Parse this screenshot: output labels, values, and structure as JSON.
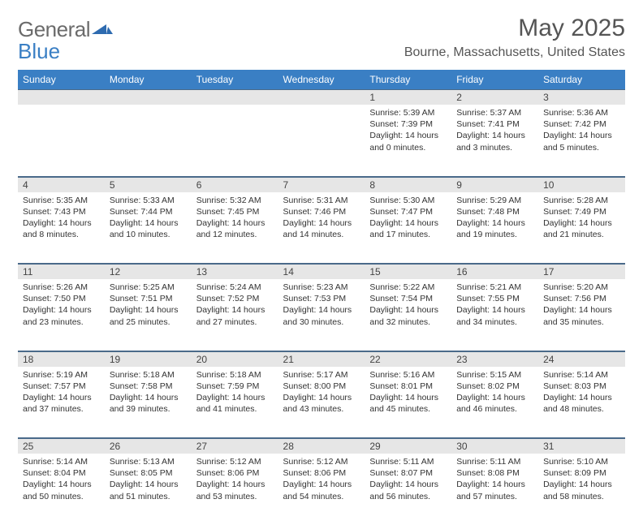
{
  "brand": {
    "part1": "General",
    "part2": "Blue"
  },
  "title": "May 2025",
  "location": "Bourne, Massachusetts, United States",
  "colors": {
    "header_bg": "#3a7fc4",
    "header_text": "#ffffff",
    "daynum_bg": "#e6e6e6",
    "border": "#4a6a8a",
    "text": "#333333",
    "title_text": "#555555"
  },
  "dayHeaders": [
    "Sunday",
    "Monday",
    "Tuesday",
    "Wednesday",
    "Thursday",
    "Friday",
    "Saturday"
  ],
  "weeks": [
    [
      null,
      null,
      null,
      null,
      {
        "n": "1",
        "sr": "5:39 AM",
        "ss": "7:39 PM",
        "dl": "14 hours and 0 minutes."
      },
      {
        "n": "2",
        "sr": "5:37 AM",
        "ss": "7:41 PM",
        "dl": "14 hours and 3 minutes."
      },
      {
        "n": "3",
        "sr": "5:36 AM",
        "ss": "7:42 PM",
        "dl": "14 hours and 5 minutes."
      }
    ],
    [
      {
        "n": "4",
        "sr": "5:35 AM",
        "ss": "7:43 PM",
        "dl": "14 hours and 8 minutes."
      },
      {
        "n": "5",
        "sr": "5:33 AM",
        "ss": "7:44 PM",
        "dl": "14 hours and 10 minutes."
      },
      {
        "n": "6",
        "sr": "5:32 AM",
        "ss": "7:45 PM",
        "dl": "14 hours and 12 minutes."
      },
      {
        "n": "7",
        "sr": "5:31 AM",
        "ss": "7:46 PM",
        "dl": "14 hours and 14 minutes."
      },
      {
        "n": "8",
        "sr": "5:30 AM",
        "ss": "7:47 PM",
        "dl": "14 hours and 17 minutes."
      },
      {
        "n": "9",
        "sr": "5:29 AM",
        "ss": "7:48 PM",
        "dl": "14 hours and 19 minutes."
      },
      {
        "n": "10",
        "sr": "5:28 AM",
        "ss": "7:49 PM",
        "dl": "14 hours and 21 minutes."
      }
    ],
    [
      {
        "n": "11",
        "sr": "5:26 AM",
        "ss": "7:50 PM",
        "dl": "14 hours and 23 minutes."
      },
      {
        "n": "12",
        "sr": "5:25 AM",
        "ss": "7:51 PM",
        "dl": "14 hours and 25 minutes."
      },
      {
        "n": "13",
        "sr": "5:24 AM",
        "ss": "7:52 PM",
        "dl": "14 hours and 27 minutes."
      },
      {
        "n": "14",
        "sr": "5:23 AM",
        "ss": "7:53 PM",
        "dl": "14 hours and 30 minutes."
      },
      {
        "n": "15",
        "sr": "5:22 AM",
        "ss": "7:54 PM",
        "dl": "14 hours and 32 minutes."
      },
      {
        "n": "16",
        "sr": "5:21 AM",
        "ss": "7:55 PM",
        "dl": "14 hours and 34 minutes."
      },
      {
        "n": "17",
        "sr": "5:20 AM",
        "ss": "7:56 PM",
        "dl": "14 hours and 35 minutes."
      }
    ],
    [
      {
        "n": "18",
        "sr": "5:19 AM",
        "ss": "7:57 PM",
        "dl": "14 hours and 37 minutes."
      },
      {
        "n": "19",
        "sr": "5:18 AM",
        "ss": "7:58 PM",
        "dl": "14 hours and 39 minutes."
      },
      {
        "n": "20",
        "sr": "5:18 AM",
        "ss": "7:59 PM",
        "dl": "14 hours and 41 minutes."
      },
      {
        "n": "21",
        "sr": "5:17 AM",
        "ss": "8:00 PM",
        "dl": "14 hours and 43 minutes."
      },
      {
        "n": "22",
        "sr": "5:16 AM",
        "ss": "8:01 PM",
        "dl": "14 hours and 45 minutes."
      },
      {
        "n": "23",
        "sr": "5:15 AM",
        "ss": "8:02 PM",
        "dl": "14 hours and 46 minutes."
      },
      {
        "n": "24",
        "sr": "5:14 AM",
        "ss": "8:03 PM",
        "dl": "14 hours and 48 minutes."
      }
    ],
    [
      {
        "n": "25",
        "sr": "5:14 AM",
        "ss": "8:04 PM",
        "dl": "14 hours and 50 minutes."
      },
      {
        "n": "26",
        "sr": "5:13 AM",
        "ss": "8:05 PM",
        "dl": "14 hours and 51 minutes."
      },
      {
        "n": "27",
        "sr": "5:12 AM",
        "ss": "8:06 PM",
        "dl": "14 hours and 53 minutes."
      },
      {
        "n": "28",
        "sr": "5:12 AM",
        "ss": "8:06 PM",
        "dl": "14 hours and 54 minutes."
      },
      {
        "n": "29",
        "sr": "5:11 AM",
        "ss": "8:07 PM",
        "dl": "14 hours and 56 minutes."
      },
      {
        "n": "30",
        "sr": "5:11 AM",
        "ss": "8:08 PM",
        "dl": "14 hours and 57 minutes."
      },
      {
        "n": "31",
        "sr": "5:10 AM",
        "ss": "8:09 PM",
        "dl": "14 hours and 58 minutes."
      }
    ]
  ],
  "labels": {
    "sunrise": "Sunrise:",
    "sunset": "Sunset:",
    "daylight": "Daylight:"
  }
}
